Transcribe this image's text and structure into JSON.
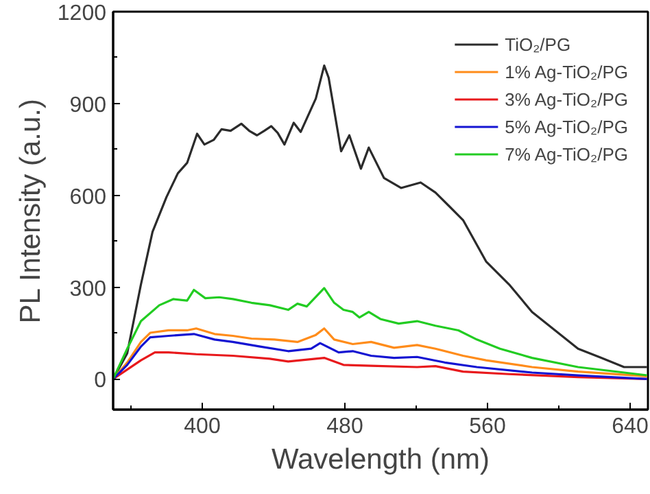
{
  "chart_data": {
    "type": "line",
    "xlabel": "Wavelength (nm)",
    "ylabel": "PL Intensity (a.u.)",
    "xlim": [
      350,
      650
    ],
    "ylim": [
      -100,
      1200
    ],
    "xticks": [
      {
        "value": 360,
        "label": null
      },
      400,
      {
        "value": 440,
        "label": null
      },
      480,
      {
        "value": 520,
        "label": null
      },
      560,
      {
        "value": 600,
        "label": null
      },
      640
    ],
    "yticks": [
      0,
      {
        "value": 150,
        "label": null
      },
      300,
      {
        "value": 450,
        "label": null
      },
      600,
      {
        "value": 750,
        "label": null
      },
      900,
      {
        "value": 1050,
        "label": null
      },
      1200
    ],
    "grid": false,
    "legend": "top right",
    "line_style": "solid",
    "marker": "none",
    "series": [
      {
        "name": "TiO₂/PG",
        "color": "#2b2b2b",
        "x": [
          350,
          357.9,
          365.6,
          372.1,
          379.9,
          386.3,
          391.5,
          397.1,
          401.2,
          406.4,
          410.8,
          415.9,
          421.9,
          426.3,
          430.7,
          434.8,
          438.7,
          442.3,
          446.1,
          451.3,
          455.2,
          463.7,
          468.4,
          470.9,
          477.9,
          482.5,
          489,
          493.4,
          501.9,
          511.5,
          522.5,
          530.8,
          538.6,
          546.3,
          559.2,
          572.1,
          585,
          597.9,
          610.8,
          623.8,
          636.6,
          641.8,
          649.5
        ],
        "values": [
          0,
          84,
          309,
          481,
          594,
          672,
          706,
          801,
          766,
          781,
          816,
          811,
          834,
          811,
          796,
          811,
          826,
          804,
          766,
          837,
          807,
          916,
          1024,
          984,
          744,
          796,
          687,
          756,
          657,
          624,
          642,
          609,
          564,
          519,
          384,
          309,
          219,
          159,
          99,
          69,
          39,
          39,
          39
        ]
      },
      {
        "name": "1% Ag-TiO₂/PG",
        "color": "#ff8c1a",
        "x": [
          350,
          357.9,
          365.6,
          370.8,
          381.1,
          391.5,
          396.6,
          406.9,
          417.2,
          427.6,
          440.5,
          453.4,
          463.7,
          468.4,
          474,
          484.4,
          494.7,
          507.6,
          520.5,
          530.8,
          546.3,
          559.2,
          585,
          610.8,
          649.5
        ],
        "values": [
          0,
          54,
          121,
          151,
          159,
          159,
          165,
          147,
          141,
          132,
          129,
          121,
          144,
          165,
          129,
          114,
          121,
          102,
          111,
          99,
          76,
          61,
          39,
          24,
          9
        ]
      },
      {
        "name": "3% Ag-TiO₂/PG",
        "color": "#e8191c",
        "x": [
          350,
          357.9,
          365.6,
          373.4,
          381.1,
          396.6,
          417.2,
          437.9,
          448.2,
          468.4,
          479.2,
          494.7,
          520.5,
          530.8,
          546.3,
          572.1,
          610.8,
          649.5
        ],
        "values": [
          0,
          31,
          61,
          87,
          87,
          81,
          76,
          66,
          57,
          69,
          46,
          43,
          39,
          42,
          24,
          16,
          6,
          0
        ]
      },
      {
        "name": "5% Ag-TiO₂/PG",
        "color": "#1414d2",
        "x": [
          350,
          357.9,
          365.6,
          370.8,
          381.1,
          395.3,
          406.9,
          417.2,
          432.5,
          448.2,
          461.1,
          466.1,
          476.5,
          484.4,
          494.7,
          507.6,
          520.5,
          536,
          554,
          585,
          610.8,
          649.5
        ],
        "values": [
          0,
          46,
          106,
          136,
          141,
          147,
          129,
          121,
          106,
          91,
          99,
          117,
          87,
          91,
          76,
          69,
          72,
          54,
          39,
          21,
          12,
          0
        ]
      },
      {
        "name": "7% Ag-TiO₂/PG",
        "color": "#22cc22",
        "x": [
          350,
          357.9,
          365.6,
          375.9,
          383.7,
          391.5,
          395.3,
          401.7,
          409.5,
          417.2,
          427.6,
          437.9,
          448.2,
          453.4,
          458.6,
          468.4,
          474,
          479.2,
          484.4,
          488.2,
          493.4,
          499.9,
          510.2,
          520.5,
          530.8,
          543.7,
          554,
          567,
          585,
          610.8,
          636.6,
          649.5
        ],
        "values": [
          0,
          99,
          189,
          241,
          261,
          256,
          291,
          264,
          267,
          261,
          249,
          241,
          226,
          246,
          237,
          297,
          249,
          226,
          219,
          201,
          219,
          196,
          181,
          189,
          174,
          159,
          129,
          99,
          69,
          39,
          21,
          12
        ]
      }
    ]
  }
}
